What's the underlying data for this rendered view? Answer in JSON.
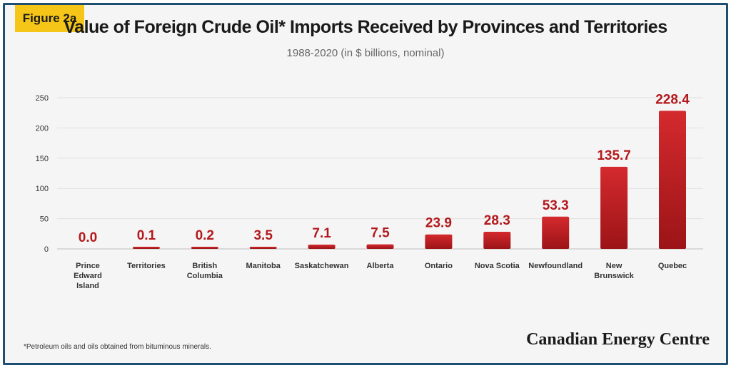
{
  "badge": "Figure 2a",
  "colors": {
    "frame": "#1e4f73",
    "badge": "#f5c518",
    "bar_top": "#d42a2e",
    "bar_bottom": "#9c1417",
    "value_label": "#b3191c"
  },
  "chart_data": {
    "type": "bar",
    "title": "Value of Foreign Crude Oil* Imports Received by Provinces and Territories",
    "subtitle": "1988-2020  (in $ billions, nominal)",
    "categories": [
      "Prince Edward Island",
      "Territories",
      "British Columbia",
      "Manitoba",
      "Saskatchewan",
      "Alberta",
      "Ontario",
      "Nova Scotia",
      "Newfoundland",
      "New Brunswick",
      "Quebec"
    ],
    "category_lines": [
      [
        "Prince",
        "Edward",
        "Island"
      ],
      [
        "Territories"
      ],
      [
        "British",
        "Columbia"
      ],
      [
        "Manitoba"
      ],
      [
        "Saskatchewan"
      ],
      [
        "Alberta"
      ],
      [
        "Ontario"
      ],
      [
        "Nova Scotia"
      ],
      [
        "Newfoundland"
      ],
      [
        "New",
        "Brunswick"
      ],
      [
        "Quebec"
      ]
    ],
    "values": [
      0.0,
      0.1,
      0.2,
      3.5,
      7.1,
      7.5,
      23.9,
      28.3,
      53.3,
      135.7,
      228.4
    ],
    "value_labels": [
      "0.0",
      "0.1",
      "0.2",
      "3.5",
      "7.1",
      "7.5",
      "23.9",
      "28.3",
      "53.3",
      "135.7",
      "228.4"
    ],
    "yticks": [
      0,
      50,
      100,
      150,
      200,
      250
    ],
    "ylim": [
      0,
      250
    ],
    "grid": true,
    "xlabel": "",
    "ylabel": ""
  },
  "footnote": "*Petroleum oils and oils obtained from bituminous minerals.",
  "brand": "Canadian Energy Centre"
}
